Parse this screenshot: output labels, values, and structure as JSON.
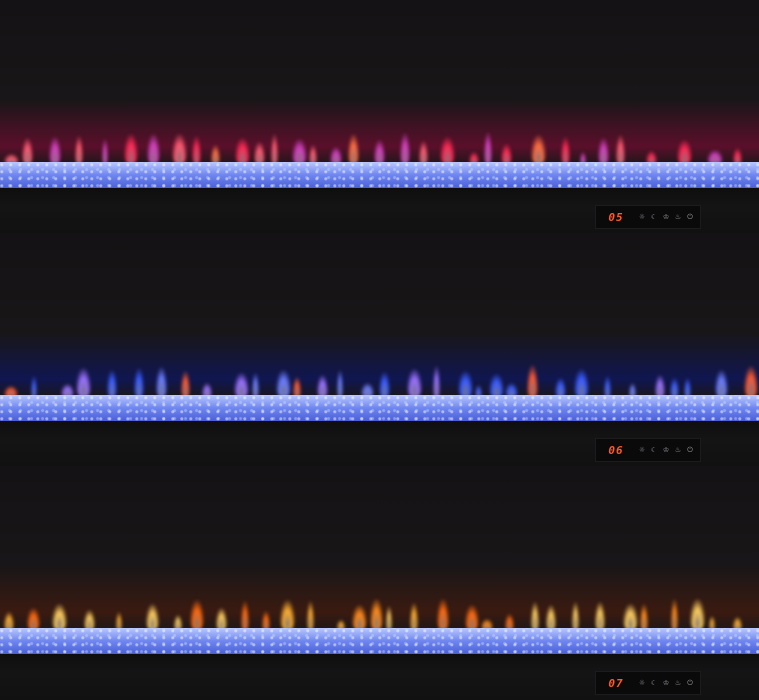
{
  "panels": [
    {
      "display": "05",
      "flame_colors": [
        "#ff2a55",
        "#ff5a70",
        "#d040c0",
        "#ff7040"
      ],
      "glow": "#5a0f2a"
    },
    {
      "display": "06",
      "flame_colors": [
        "#3a5cff",
        "#6a7cff",
        "#ff5a30",
        "#9a70ff"
      ],
      "glow": "#101650"
    },
    {
      "display": "07",
      "flame_colors": [
        "#ff8a1a",
        "#ffb030",
        "#ff6a10",
        "#ffd060"
      ],
      "glow": "#3a1a10"
    }
  ],
  "control_icons": [
    "brightness-icon",
    "timer-icon",
    "flame-icon",
    "heater-icon",
    "power-icon"
  ],
  "icon_glyphs": [
    "☼",
    "☾",
    "♔",
    "♨",
    "⏻"
  ]
}
